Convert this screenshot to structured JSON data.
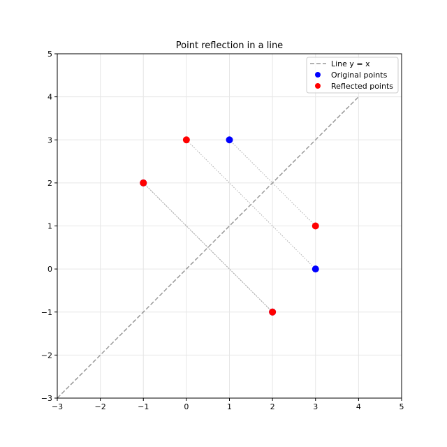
{
  "chart_data": {
    "type": "scatter",
    "title": "Point reflection in a line",
    "xlabel": "",
    "ylabel": "",
    "xlim": [
      -3,
      5
    ],
    "ylim": [
      -3,
      5
    ],
    "xticks": [
      -3,
      -2,
      -1,
      0,
      1,
      2,
      3,
      4,
      5
    ],
    "yticks": [
      -3,
      -2,
      -1,
      0,
      1,
      2,
      3,
      4,
      5
    ],
    "xtick_labels": [
      "−3",
      "−2",
      "−1",
      "0",
      "1",
      "2",
      "3",
      "4",
      "5"
    ],
    "ytick_labels": [
      "−3",
      "−2",
      "−1",
      "0",
      "1",
      "2",
      "3",
      "4",
      "5"
    ],
    "grid": true,
    "legend_position": "top-right",
    "line": {
      "name": "Line y = x",
      "x": [
        -3,
        4
      ],
      "y": [
        -3,
        4
      ],
      "color": "#999999",
      "style": "dashed"
    },
    "series": [
      {
        "name": "Original points",
        "color": "#0000ff",
        "points": [
          [
            1,
            3
          ],
          [
            3,
            0
          ],
          [
            2,
            -1
          ],
          [
            -1,
            2
          ]
        ]
      },
      {
        "name": "Reflected points",
        "color": "#ff0000",
        "points": [
          [
            3,
            1
          ],
          [
            0,
            3
          ],
          [
            -1,
            2
          ],
          [
            2,
            -1
          ]
        ]
      }
    ],
    "connectors": [
      [
        [
          1,
          3
        ],
        [
          3,
          1
        ]
      ],
      [
        [
          3,
          0
        ],
        [
          0,
          3
        ]
      ],
      [
        [
          2,
          -1
        ],
        [
          -1,
          2
        ]
      ],
      [
        [
          -1,
          2
        ],
        [
          2,
          -1
        ]
      ]
    ]
  }
}
